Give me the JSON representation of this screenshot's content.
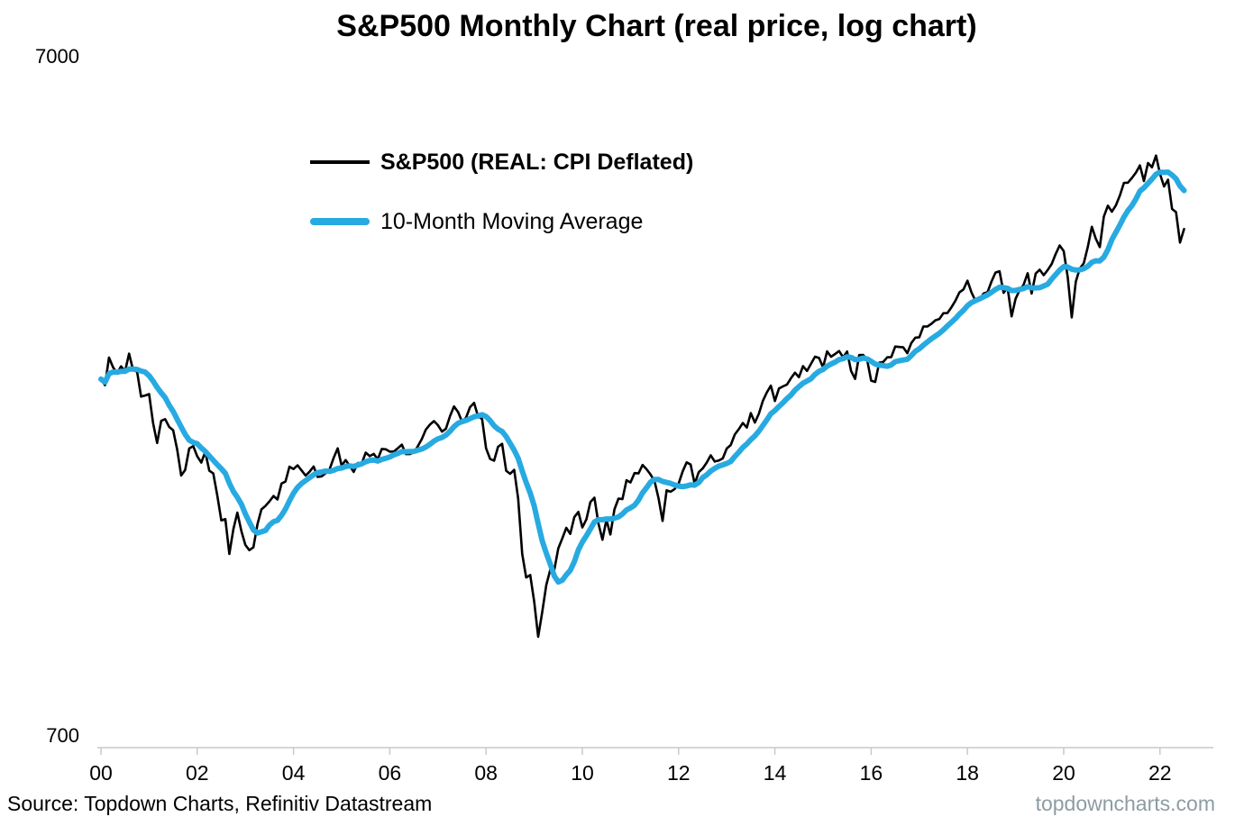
{
  "title": "S&P500 Monthly Chart (real price, log chart)",
  "footer": {
    "source_note": "Source: Topdown Charts, Refinitiv Datastream",
    "watermark": "topdowncharts.com"
  },
  "chart_data": {
    "type": "line",
    "title": "S&P500 Monthly Chart (real price, log chart)",
    "y_scale": "log",
    "ylim": [
      700,
      7000
    ],
    "y_tick_labels": [
      "7000",
      "700"
    ],
    "x_tick_labels": [
      "00",
      "02",
      "04",
      "06",
      "08",
      "10",
      "12",
      "14",
      "16",
      "18",
      "20",
      "22"
    ],
    "x_start": "2000-01",
    "x_end": "2022-07",
    "frequency": "monthly",
    "grid": "off",
    "legend_position": "upper-left-inside",
    "axis_color": "#c9c9c9",
    "series": [
      {
        "name": "S&P500 (REAL: CPI Deflated)",
        "color": "#000000",
        "line_width": 2.6,
        "values": [
          2398,
          2350,
          2578,
          2497,
          2444,
          2503,
          2461,
          2611,
          2472,
          2458,
          2262,
          2270,
          2281,
          2071,
          1937,
          2086,
          2098,
          2044,
          2022,
          1894,
          1738,
          1770,
          1902,
          1917,
          1853,
          1815,
          1881,
          1766,
          1750,
          1624,
          1496,
          1502,
          1337,
          1453,
          1535,
          1443,
          1378,
          1354,
          1367,
          1476,
          1552,
          1570,
          1594,
          1623,
          1604,
          1692,
          1703,
          1790,
          1776,
          1798,
          1768,
          1738,
          1760,
          1791,
          1730,
          1733,
          1751,
          1774,
          1843,
          1903,
          1795,
          1830,
          1795,
          1759,
          1812,
          1810,
          1876,
          1854,
          1868,
          1835,
          1899,
          1897,
          1882,
          1883,
          1904,
          1927,
          1867,
          1867,
          1877,
          1917,
          1964,
          2026,
          2060,
          2084,
          2056,
          2012,
          2032,
          2119,
          2189,
          2149,
          2081,
          2108,
          2184,
          2215,
          2118,
          2099,
          1903,
          1837,
          1826,
          1913,
          1932,
          1766,
          1748,
          1771,
          1609,
          1337,
          1236,
          1246,
          1140,
          1014,
          1101,
          1205,
          1268,
          1268,
          1362,
          1409,
          1459,
          1430,
          1512,
          1539,
          1461,
          1501,
          1590,
          1614,
          1481,
          1402,
          1499,
          1427,
          1552,
          1609,
          1606,
          1711,
          1698,
          1752,
          1750,
          1800,
          1775,
          1744,
          1705,
          1609,
          1493,
          1654,
          1646,
          1661,
          1692,
          1762,
          1816,
          1803,
          1690,
          1757,
          1779,
          1815,
          1859,
          1821,
          1827,
          1840,
          1902,
          1924,
          1993,
          2029,
          2071,
          2040,
          2141,
          2074,
          2136,
          2231,
          2294,
          2347,
          2229,
          2324,
          2340,
          2355,
          2405,
          2450,
          2414,
          2504,
          2465,
          2523,
          2585,
          2574,
          2494,
          2631,
          2585,
          2608,
          2634,
          2579,
          2630,
          2465,
          2400,
          2599,
          2600,
          2555,
          2386,
          2376,
          2534,
          2540,
          2579,
          2582,
          2674,
          2670,
          2667,
          2615,
          2705,
          2754,
          2758,
          2860,
          2859,
          2885,
          2919,
          2932,
          2989,
          2991,
          3048,
          3116,
          3204,
          3236,
          3332,
          3203,
          3116,
          3125,
          3192,
          3207,
          3323,
          3424,
          3439,
          3200,
          3257,
          2958,
          3137,
          3229,
          3287,
          3417,
          3192,
          3413,
          3457,
          3394,
          3453,
          3524,
          3644,
          3748,
          3678,
          3368,
          2947,
          3320,
          3470,
          3534,
          3729,
          3990,
          3834,
          3728,
          4129,
          4282,
          4197,
          4287,
          4430,
          4620,
          4624,
          4698,
          4782,
          4898,
          4648,
          4937,
          4868,
          5062,
          4760,
          4566,
          4670,
          4235,
          4190,
          3785,
          3960
        ]
      },
      {
        "name": "10-Month Moving Average",
        "color": "#27AAE1",
        "line_width": 6,
        "derived": "simple_moving_average_of_series_0",
        "window": 10
      }
    ]
  }
}
